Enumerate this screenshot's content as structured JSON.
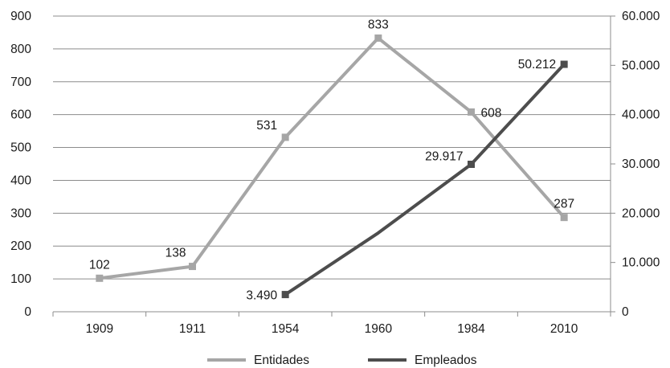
{
  "chart_data": {
    "type": "line",
    "categories": [
      "1909",
      "1911",
      "1954",
      "1960",
      "1984",
      "2010"
    ],
    "y_left": {
      "ylim": [
        0,
        900
      ],
      "ticks": [
        0,
        100,
        200,
        300,
        400,
        500,
        600,
        700,
        800,
        900
      ],
      "tick_labels": [
        "0",
        "100",
        "200",
        "300",
        "400",
        "500",
        "600",
        "700",
        "800",
        "900"
      ]
    },
    "y_right": {
      "ylim": [
        0,
        60000
      ],
      "ticks": [
        0,
        10000,
        20000,
        30000,
        40000,
        50000,
        60000
      ],
      "tick_labels": [
        "0",
        "10.000",
        "20.000",
        "30.000",
        "40.000",
        "50.000",
        "60.000"
      ]
    },
    "grid": true,
    "legend_position": "bottom",
    "series": [
      {
        "name": "Entidades",
        "axis": "left",
        "color": "#a6a6a6",
        "values": [
          102,
          138,
          531,
          833,
          608,
          287
        ],
        "labels": [
          "102",
          "138",
          "531",
          "833",
          "608",
          "287"
        ],
        "markers": [
          true,
          true,
          true,
          true,
          true,
          true
        ]
      },
      {
        "name": "Empleados",
        "axis": "right",
        "color": "#4d4d4d",
        "values": [
          null,
          null,
          3490,
          16000,
          29917,
          50212
        ],
        "labels": [
          null,
          null,
          "3.490",
          null,
          "29.917",
          "50.212"
        ],
        "markers": [
          false,
          false,
          true,
          false,
          true,
          true
        ]
      }
    ]
  }
}
